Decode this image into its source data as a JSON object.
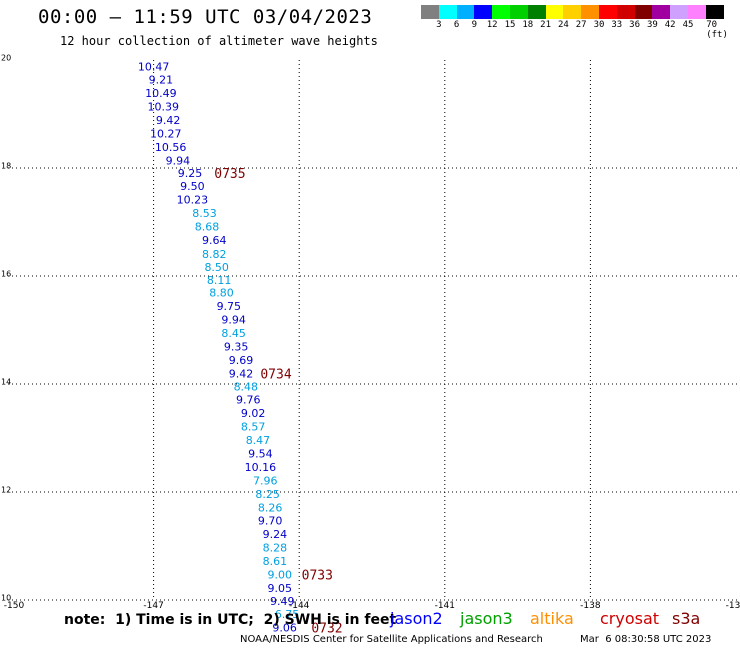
{
  "header": {
    "title": "00:00 – 11:59 UTC 03/04/2023",
    "subtitle": "12 hour collection of altimeter wave heights"
  },
  "legend": {
    "colors": [
      "#808080",
      "#00ffff",
      "#00b0ff",
      "#0000ff",
      "#00ff00",
      "#00d000",
      "#008000",
      "#ffff00",
      "#ffd000",
      "#ff9000",
      "#ff0000",
      "#d00000",
      "#800000",
      "#a000a0",
      "#d0a0ff",
      "#ff80ff",
      "#000000"
    ],
    "labels": [
      "3",
      "6",
      "9",
      "12",
      "15",
      "18",
      "21",
      "24",
      "27",
      "30",
      "33",
      "36",
      "39",
      "42",
      "45",
      "70 (ft)"
    ]
  },
  "axes": {
    "y_ticks": [
      "20",
      "18",
      "16",
      "14",
      "12",
      "10"
    ],
    "x_ticks": [
      "-150",
      "-147",
      "-144",
      "-141",
      "-138",
      "-13"
    ]
  },
  "observations": [
    {
      "lon": -147.0,
      "lat": 19.88,
      "val": "10.47",
      "color": "#0000c8"
    },
    {
      "lon": -146.85,
      "lat": 19.64,
      "val": "9.21",
      "color": "#0000c8"
    },
    {
      "lon": -146.85,
      "lat": 19.39,
      "val": "10.49",
      "color": "#0000c8"
    },
    {
      "lon": -146.8,
      "lat": 19.14,
      "val": "10.39",
      "color": "#0000c8"
    },
    {
      "lon": -146.7,
      "lat": 18.89,
      "val": "9.42",
      "color": "#0000c8"
    },
    {
      "lon": -146.75,
      "lat": 18.64,
      "val": "10.27",
      "color": "#0000c8"
    },
    {
      "lon": -146.65,
      "lat": 18.39,
      "val": "10.56",
      "color": "#0000c8"
    },
    {
      "lon": -146.5,
      "lat": 18.14,
      "val": "9.94",
      "color": "#0000c8"
    },
    {
      "lon": -146.25,
      "lat": 17.91,
      "val": "9.25",
      "color": "#0000c8"
    },
    {
      "lon": -146.2,
      "lat": 17.67,
      "val": "9.50",
      "color": "#0000c8"
    },
    {
      "lon": -146.2,
      "lat": 17.42,
      "val": "10.23",
      "color": "#0000c8"
    },
    {
      "lon": -145.95,
      "lat": 17.17,
      "val": "8.53",
      "color": "#00a0e0"
    },
    {
      "lon": -145.9,
      "lat": 16.92,
      "val": "8.68",
      "color": "#00a0e0"
    },
    {
      "lon": -145.75,
      "lat": 16.67,
      "val": "9.64",
      "color": "#0000c8"
    },
    {
      "lon": -145.75,
      "lat": 16.41,
      "val": "8.82",
      "color": "#00a0e0"
    },
    {
      "lon": -145.7,
      "lat": 16.17,
      "val": "8.50",
      "color": "#00a0e0"
    },
    {
      "lon": -145.65,
      "lat": 15.93,
      "val": "8.11",
      "color": "#00a0e0"
    },
    {
      "lon": -145.6,
      "lat": 15.69,
      "val": "8.80",
      "color": "#00a0e0"
    },
    {
      "lon": -145.45,
      "lat": 15.44,
      "val": "9.75",
      "color": "#0000c8"
    },
    {
      "lon": -145.35,
      "lat": 15.19,
      "val": "9.94",
      "color": "#0000c8"
    },
    {
      "lon": -145.35,
      "lat": 14.94,
      "val": "8.45",
      "color": "#00a0e0"
    },
    {
      "lon": -145.3,
      "lat": 14.69,
      "val": "9.35",
      "color": "#0000c8"
    },
    {
      "lon": -145.2,
      "lat": 14.44,
      "val": "9.69",
      "color": "#0000c8"
    },
    {
      "lon": -145.2,
      "lat": 14.19,
      "val": "9.42",
      "color": "#0000c8"
    },
    {
      "lon": -145.1,
      "lat": 13.95,
      "val": "8.48",
      "color": "#00a0e0"
    },
    {
      "lon": -145.05,
      "lat": 13.71,
      "val": "9.76",
      "color": "#0000c8"
    },
    {
      "lon": -144.95,
      "lat": 13.46,
      "val": "9.02",
      "color": "#0000c8"
    },
    {
      "lon": -144.95,
      "lat": 13.21,
      "val": "8.57",
      "color": "#00a0e0"
    },
    {
      "lon": -144.85,
      "lat": 12.96,
      "val": "8.47",
      "color": "#00a0e0"
    },
    {
      "lon": -144.8,
      "lat": 12.71,
      "val": "9.54",
      "color": "#0000c8"
    },
    {
      "lon": -144.8,
      "lat": 12.46,
      "val": "10.16",
      "color": "#0000c8"
    },
    {
      "lon": -144.7,
      "lat": 12.21,
      "val": "7.96",
      "color": "#00a0e0"
    },
    {
      "lon": -144.65,
      "lat": 11.96,
      "val": "8.25",
      "color": "#00a0e0"
    },
    {
      "lon": -144.6,
      "lat": 11.71,
      "val": "8.26",
      "color": "#00a0e0"
    },
    {
      "lon": -144.6,
      "lat": 11.47,
      "val": "9.70",
      "color": "#0000c8"
    },
    {
      "lon": -144.5,
      "lat": 11.22,
      "val": "9.24",
      "color": "#0000c8"
    },
    {
      "lon": -144.5,
      "lat": 10.97,
      "val": "8.28",
      "color": "#00a0e0"
    },
    {
      "lon": -144.5,
      "lat": 10.72,
      "val": "8.61",
      "color": "#00a0e0"
    },
    {
      "lon": -144.4,
      "lat": 10.47,
      "val": "9.00",
      "color": "#00a0e0"
    },
    {
      "lon": -144.4,
      "lat": 10.22,
      "val": "9.05",
      "color": "#0000c8"
    },
    {
      "lon": -144.35,
      "lat": 9.98,
      "val": "9.49",
      "color": "#0000c8"
    },
    {
      "lon": -144.25,
      "lat": 9.74,
      "val": "6.75",
      "color": "#00a0e0"
    },
    {
      "lon": -144.3,
      "lat": 9.49,
      "val": "9.06",
      "color": "#0000c8"
    }
  ],
  "time_labels": [
    {
      "lon": -145.75,
      "lat": 17.91,
      "text": "0735"
    },
    {
      "lon": -144.8,
      "lat": 14.19,
      "text": "0734"
    },
    {
      "lon": -143.95,
      "lat": 10.47,
      "text": "0733"
    },
    {
      "lon": -143.75,
      "lat": 9.49,
      "text": "0732"
    }
  ],
  "footer": {
    "note": "note:  1) Time is in UTC;  2) SWH is in feet",
    "satellites": [
      {
        "name": "jason2",
        "color": "#0000ff"
      },
      {
        "name": "jason3",
        "color": "#00a000"
      },
      {
        "name": "altika",
        "color": "#ff9000"
      },
      {
        "name": "cryosat",
        "color": "#d00000"
      },
      {
        "name": "s3a",
        "color": "#800000"
      }
    ],
    "credit": "NOAA/NESDIS Center for Satellite Applications and Research",
    "timestamp": "Mar  6 08:30:58 UTC 2023"
  }
}
